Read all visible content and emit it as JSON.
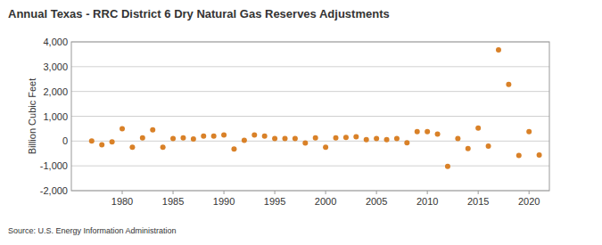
{
  "chart_data": {
    "type": "scatter",
    "title": "Annual Texas - RRC District 6 Dry Natural Gas Reserves Adjustments",
    "y_label": "Billion Cubic Feet",
    "annotations": [
      "Source: U.S. Energy Information Administration"
    ],
    "x": [
      1977,
      1978,
      1979,
      1980,
      1981,
      1982,
      1983,
      1984,
      1985,
      1986,
      1987,
      1988,
      1989,
      1990,
      1991,
      1992,
      1993,
      1994,
      1995,
      1996,
      1997,
      1998,
      1999,
      2000,
      2001,
      2002,
      2003,
      2004,
      2005,
      2006,
      2007,
      2008,
      2009,
      2010,
      2011,
      2012,
      2013,
      2014,
      2015,
      2016,
      2017,
      2018,
      2019,
      2020,
      2021
    ],
    "values": [
      0,
      -150,
      -30,
      500,
      -250,
      130,
      450,
      -250,
      100,
      130,
      80,
      200,
      200,
      250,
      -320,
      30,
      250,
      200,
      100,
      100,
      100,
      -80,
      130,
      -250,
      130,
      150,
      170,
      60,
      100,
      60,
      100,
      -70,
      380,
      380,
      280,
      -1020,
      100,
      -300,
      520,
      -200,
      3680,
      2280,
      -580,
      380,
      -560
    ],
    "color": "#d98128",
    "marker": "circle",
    "xlim": [
      1975,
      2022
    ],
    "xticks": [
      1980,
      1985,
      1990,
      1995,
      2000,
      2005,
      2010,
      2015,
      2020
    ],
    "ylim": [
      -2000,
      4000
    ],
    "yticks": [
      {
        "value": -2000,
        "label": "-2,000"
      },
      {
        "value": -1000,
        "label": "-1,000"
      },
      0,
      {
        "value": 1000,
        "label": "1,000"
      },
      {
        "value": 2000,
        "label": "2,000"
      },
      {
        "value": 3000,
        "label": "3,000"
      },
      {
        "value": 4000,
        "label": "4,000"
      }
    ],
    "grid": true
  }
}
